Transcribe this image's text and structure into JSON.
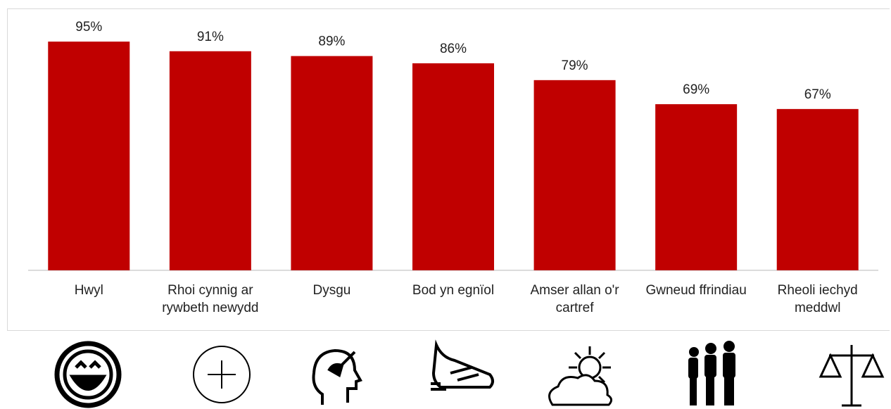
{
  "chart_data": {
    "type": "bar",
    "categories": [
      "Hwyl",
      "Rhoi cynnig ar rywbeth newydd",
      "Dysgu",
      "Bod yn egnïol",
      "Amser allan o'r cartref",
      "Gwneud ffrindiau",
      "Rheoli iechyd meddwl"
    ],
    "values": [
      95,
      91,
      89,
      86,
      79,
      69,
      67
    ],
    "value_labels": [
      "95%",
      "91%",
      "89%",
      "86%",
      "79%",
      "69%",
      "67%"
    ],
    "color": "#c00000",
    "ylim": [
      0,
      100
    ]
  }
}
